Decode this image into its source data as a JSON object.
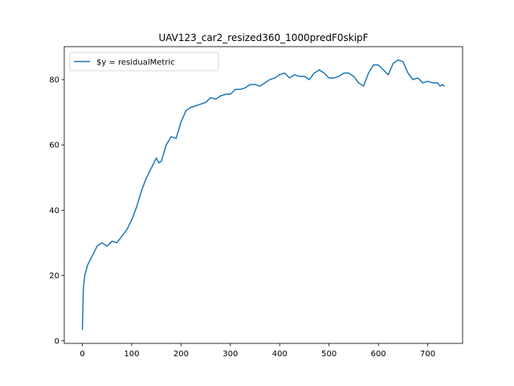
{
  "chart_data": {
    "type": "line",
    "title": "UAV123_car2_resized360_1000predF0skipF",
    "x": [
      0,
      2,
      5,
      10,
      20,
      30,
      40,
      50,
      60,
      70,
      80,
      90,
      100,
      110,
      120,
      130,
      140,
      150,
      155,
      160,
      170,
      180,
      190,
      200,
      210,
      220,
      230,
      240,
      250,
      260,
      270,
      280,
      290,
      300,
      310,
      320,
      330,
      340,
      350,
      360,
      370,
      380,
      390,
      400,
      410,
      420,
      430,
      440,
      450,
      460,
      470,
      480,
      490,
      500,
      510,
      520,
      530,
      540,
      550,
      560,
      570,
      580,
      590,
      600,
      610,
      620,
      630,
      640,
      650,
      660,
      670,
      680,
      690,
      700,
      710,
      720,
      725,
      730,
      734
    ],
    "series": [
      {
        "name": "$y = residualMetric",
        "color": "#1f77b4",
        "values": [
          3.3,
          16,
          20,
          23,
          26,
          29,
          30,
          29,
          30.5,
          30,
          32,
          34,
          37,
          41,
          46,
          50,
          53,
          56,
          54.5,
          55,
          60,
          62.5,
          62,
          67,
          70.5,
          71.5,
          72,
          72.5,
          73,
          74.5,
          74,
          75,
          75.5,
          75.5,
          77,
          77,
          77.5,
          78.5,
          78.5,
          78,
          79,
          80,
          80.5,
          81.5,
          82,
          80.5,
          81.5,
          81,
          81,
          80,
          82,
          83,
          82,
          80.5,
          80.5,
          81,
          82,
          82,
          81,
          79,
          78,
          82,
          84.5,
          84.5,
          83,
          81.5,
          85,
          86,
          85.5,
          82,
          80,
          80.5,
          79,
          79.5,
          79,
          79,
          78,
          78.5,
          78
        ]
      }
    ],
    "xlim": [
      -36.7,
      770.7
    ],
    "ylim": [
      -0.8,
      90.1
    ],
    "xticks": [
      0,
      100,
      200,
      300,
      400,
      500,
      600,
      700
    ],
    "yticks": [
      0,
      20,
      40,
      60,
      80
    ],
    "legend": "upper left"
  }
}
